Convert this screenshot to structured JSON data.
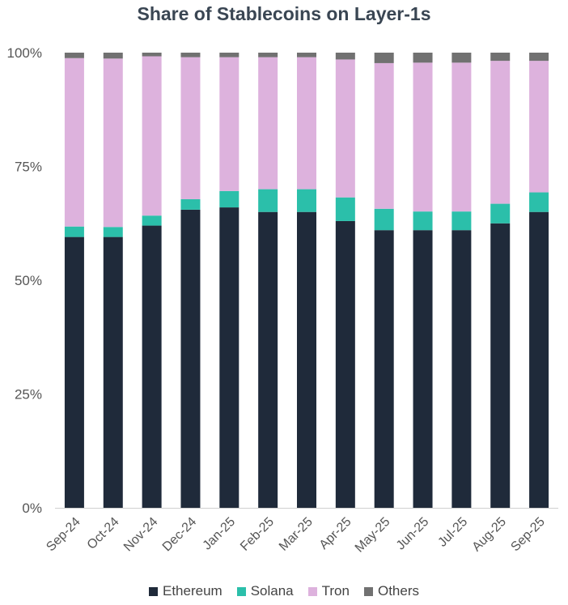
{
  "chart_data": {
    "type": "bar",
    "stacked": true,
    "title": "Share of Stablecoins on Layer-1s",
    "xlabel": "",
    "ylabel": "",
    "ylim": [
      0,
      100
    ],
    "y_ticks": [
      "0%",
      "25%",
      "50%",
      "75%",
      "100%"
    ],
    "categories": [
      "Sep-24",
      "Oct-24",
      "Nov-24",
      "Dec-24",
      "Jan-25",
      "Feb-25",
      "Mar-25",
      "Apr-25",
      "May-25",
      "Jun-25",
      "Jul-25",
      "Aug-25",
      "Sep-25"
    ],
    "series": [
      {
        "name": "Ethereum",
        "color": "#1f2a3a",
        "values": [
          59.5,
          59.5,
          62,
          65.5,
          66,
          65,
          65,
          63,
          61,
          61,
          61,
          62.5,
          65
        ]
      },
      {
        "name": "Solana",
        "color": "#2bbfaa",
        "values": [
          2.3,
          2.2,
          2.2,
          2.3,
          3.6,
          5,
          5,
          5.2,
          4.7,
          4.1,
          4.1,
          4.3,
          4.3
        ]
      },
      {
        "name": "Tron",
        "color": "#ddb2dd",
        "values": [
          37,
          37,
          35,
          31.2,
          29.4,
          29,
          29,
          30.3,
          32,
          32.7,
          32.7,
          31.4,
          28.9
        ]
      },
      {
        "name": "Others",
        "color": "#717171",
        "values": [
          1.2,
          1.3,
          0.8,
          1.0,
          1.0,
          1.0,
          1.0,
          1.5,
          2.3,
          2.2,
          2.2,
          1.8,
          1.8
        ]
      }
    ],
    "legend_position": "bottom",
    "grid": false
  }
}
